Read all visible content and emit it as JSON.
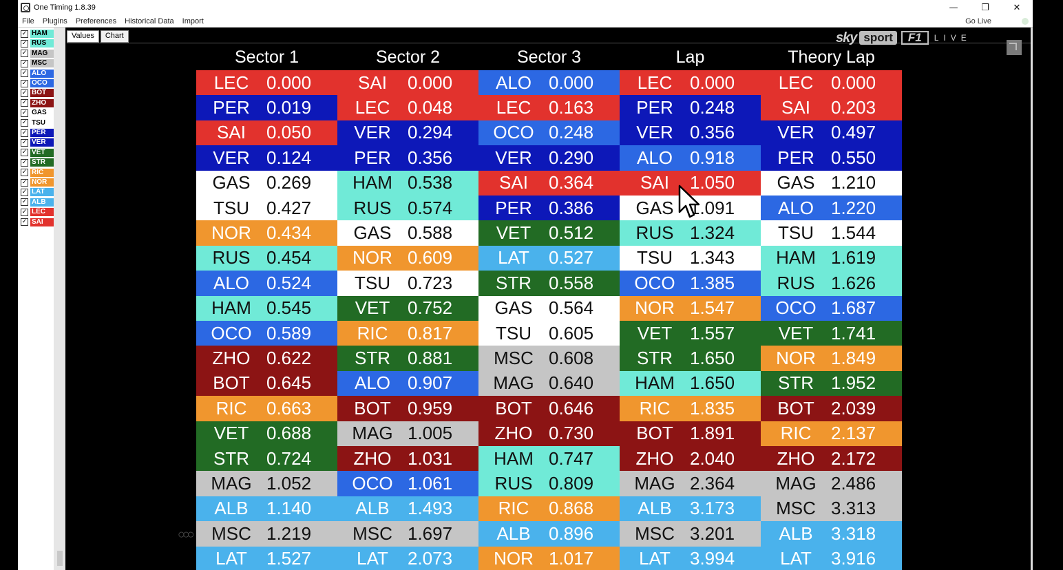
{
  "window": {
    "title": "One Timing 1.8.39",
    "minimize_glyph": "—",
    "restore_glyph": "❐",
    "close_glyph": "✕"
  },
  "menu": {
    "items": [
      "File",
      "Plugins",
      "Preferences",
      "Historical Data",
      "Import"
    ],
    "status": "Go Live"
  },
  "tabs": {
    "values_label": "Values",
    "chart_label": "Chart"
  },
  "broadcaster": {
    "sky": "sky",
    "sport": "sport",
    "f1": "F1",
    "live": "LIVE"
  },
  "team_colors": {
    "HAM": "#70ead7",
    "RUS": "#70ead7",
    "MAG": "#c5c5c5",
    "MSC": "#c5c5c5",
    "ALO": "#2c68e3",
    "OCO": "#2c68e3",
    "BOT": "#8c1414",
    "ZHO": "#8c1414",
    "GAS": "#ffffff",
    "TSU": "#ffffff",
    "PER": "#0d18b8",
    "VER": "#0d18b8",
    "VET": "#226b24",
    "STR": "#226b24",
    "RIC": "#f0962e",
    "NOR": "#f0962e",
    "LAT": "#4ab2ec",
    "ALB": "#4ab2ec",
    "LEC": "#e2322d",
    "SAI": "#e2322d"
  },
  "dark_text_codes": [
    "HAM",
    "RUS",
    "MAG",
    "MSC",
    "GAS",
    "TSU"
  ],
  "drivers": [
    "HAM",
    "RUS",
    "MAG",
    "MSC",
    "ALO",
    "OCO",
    "BOT",
    "ZHO",
    "GAS",
    "TSU",
    "PER",
    "VER",
    "VET",
    "STR",
    "RIC",
    "NOR",
    "LAT",
    "ALB",
    "LEC",
    "SAI"
  ],
  "checkmark": "✓",
  "columns": [
    {
      "header": "Sector 1",
      "rows": [
        [
          "LEC",
          "0.000"
        ],
        [
          "PER",
          "0.019"
        ],
        [
          "SAI",
          "0.050"
        ],
        [
          "VER",
          "0.124"
        ],
        [
          "GAS",
          "0.269"
        ],
        [
          "TSU",
          "0.427"
        ],
        [
          "NOR",
          "0.434"
        ],
        [
          "RUS",
          "0.454"
        ],
        [
          "ALO",
          "0.524"
        ],
        [
          "HAM",
          "0.545"
        ],
        [
          "OCO",
          "0.589"
        ],
        [
          "ZHO",
          "0.622"
        ],
        [
          "BOT",
          "0.645"
        ],
        [
          "RIC",
          "0.663"
        ],
        [
          "VET",
          "0.688"
        ],
        [
          "STR",
          "0.724"
        ],
        [
          "MAG",
          "1.052"
        ],
        [
          "ALB",
          "1.140"
        ],
        [
          "MSC",
          "1.219"
        ],
        [
          "LAT",
          "1.527"
        ]
      ]
    },
    {
      "header": "Sector 2",
      "rows": [
        [
          "SAI",
          "0.000"
        ],
        [
          "LEC",
          "0.048"
        ],
        [
          "VER",
          "0.294"
        ],
        [
          "PER",
          "0.356"
        ],
        [
          "HAM",
          "0.538"
        ],
        [
          "RUS",
          "0.574"
        ],
        [
          "GAS",
          "0.588"
        ],
        [
          "NOR",
          "0.609"
        ],
        [
          "TSU",
          "0.723"
        ],
        [
          "VET",
          "0.752"
        ],
        [
          "RIC",
          "0.817"
        ],
        [
          "STR",
          "0.881"
        ],
        [
          "ALO",
          "0.907"
        ],
        [
          "BOT",
          "0.959"
        ],
        [
          "MAG",
          "1.005"
        ],
        [
          "ZHO",
          "1.031"
        ],
        [
          "OCO",
          "1.061"
        ],
        [
          "ALB",
          "1.493"
        ],
        [
          "MSC",
          "1.697"
        ],
        [
          "LAT",
          "2.073"
        ]
      ]
    },
    {
      "header": "Sector 3",
      "rows": [
        [
          "ALO",
          "0.000"
        ],
        [
          "LEC",
          "0.163"
        ],
        [
          "OCO",
          "0.248"
        ],
        [
          "VER",
          "0.290"
        ],
        [
          "SAI",
          "0.364"
        ],
        [
          "PER",
          "0.386"
        ],
        [
          "VET",
          "0.512"
        ],
        [
          "LAT",
          "0.527"
        ],
        [
          "STR",
          "0.558"
        ],
        [
          "GAS",
          "0.564"
        ],
        [
          "TSU",
          "0.605"
        ],
        [
          "MSC",
          "0.608"
        ],
        [
          "MAG",
          "0.640"
        ],
        [
          "BOT",
          "0.646"
        ],
        [
          "ZHO",
          "0.730"
        ],
        [
          "HAM",
          "0.747"
        ],
        [
          "RUS",
          "0.809"
        ],
        [
          "RIC",
          "0.868"
        ],
        [
          "ALB",
          "0.896"
        ],
        [
          "NOR",
          "1.017"
        ]
      ]
    },
    {
      "header": "Lap",
      "rows": [
        [
          "LEC",
          "0.000"
        ],
        [
          "PER",
          "0.248"
        ],
        [
          "VER",
          "0.356"
        ],
        [
          "ALO",
          "0.918"
        ],
        [
          "SAI",
          "1.050"
        ],
        [
          "GAS",
          "1.091"
        ],
        [
          "RUS",
          "1.324"
        ],
        [
          "TSU",
          "1.343"
        ],
        [
          "OCO",
          "1.385"
        ],
        [
          "NOR",
          "1.547"
        ],
        [
          "VET",
          "1.557"
        ],
        [
          "STR",
          "1.650"
        ],
        [
          "HAM",
          "1.650"
        ],
        [
          "RIC",
          "1.835"
        ],
        [
          "BOT",
          "1.891"
        ],
        [
          "ZHO",
          "2.040"
        ],
        [
          "MAG",
          "2.364"
        ],
        [
          "ALB",
          "3.173"
        ],
        [
          "MSC",
          "3.201"
        ],
        [
          "LAT",
          "3.994"
        ]
      ]
    },
    {
      "header": "Theory Lap",
      "rows": [
        [
          "LEC",
          "0.000"
        ],
        [
          "SAI",
          "0.203"
        ],
        [
          "VER",
          "0.497"
        ],
        [
          "PER",
          "0.550"
        ],
        [
          "GAS",
          "1.210"
        ],
        [
          "ALO",
          "1.220"
        ],
        [
          "TSU",
          "1.544"
        ],
        [
          "HAM",
          "1.619"
        ],
        [
          "RUS",
          "1.626"
        ],
        [
          "OCO",
          "1.687"
        ],
        [
          "VET",
          "1.741"
        ],
        [
          "NOR",
          "1.849"
        ],
        [
          "STR",
          "1.952"
        ],
        [
          "BOT",
          "2.039"
        ],
        [
          "RIC",
          "2.137"
        ],
        [
          "ZHO",
          "2.172"
        ],
        [
          "MAG",
          "2.486"
        ],
        [
          "MSC",
          "3.313"
        ],
        [
          "ALB",
          "3.318"
        ],
        [
          "LAT",
          "3.916"
        ]
      ]
    }
  ]
}
